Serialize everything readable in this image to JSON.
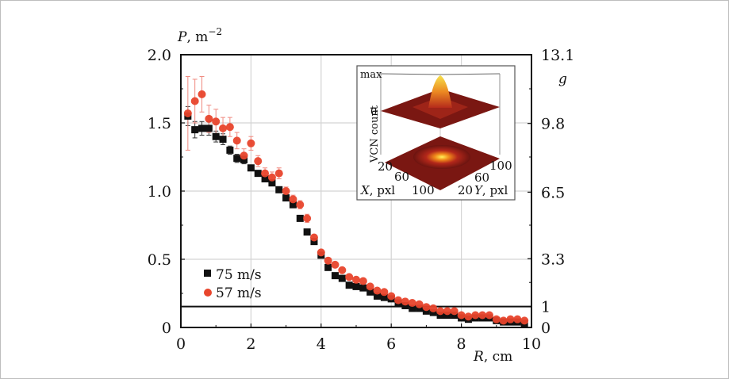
{
  "chart_data": {
    "type": "scatter",
    "title": "",
    "xlabel": "R, cm",
    "ylabel": "P, m^-2",
    "ylabel_right": "g",
    "xlim": [
      0,
      10
    ],
    "ylim": [
      0,
      2.0
    ],
    "xticks": [
      "0",
      "2",
      "4",
      "6",
      "8",
      "10"
    ],
    "yticks": [
      "0",
      "0.5",
      "1.0",
      "1.5",
      "2.0"
    ],
    "yticks_right": [
      "0",
      "1",
      "3.3",
      "6.5",
      "9.8",
      "13.1"
    ],
    "yticks_right_values": [
      0,
      0.153,
      0.504,
      0.992,
      1.496,
      2.0
    ],
    "grid": true,
    "reference_line": {
      "y": 0.153,
      "label": "g = 1"
    },
    "legend": {
      "position": "bottom-left",
      "entries": [
        "75 m/s",
        "57 m/s"
      ]
    },
    "series": [
      {
        "name": "75 m/s",
        "marker": "square",
        "color": "#111111",
        "x": [
          0.2,
          0.4,
          0.6,
          0.8,
          1.0,
          1.2,
          1.4,
          1.6,
          1.8,
          2.0,
          2.2,
          2.4,
          2.6,
          2.8,
          3.0,
          3.2,
          3.4,
          3.6,
          3.8,
          4.0,
          4.2,
          4.4,
          4.6,
          4.8,
          5.0,
          5.2,
          5.4,
          5.6,
          5.8,
          6.0,
          6.2,
          6.4,
          6.6,
          6.8,
          7.0,
          7.2,
          7.4,
          7.6,
          7.8,
          8.0,
          8.2,
          8.4,
          8.6,
          8.8,
          9.0,
          9.2,
          9.4,
          9.6,
          9.8
        ],
        "y": [
          1.55,
          1.45,
          1.46,
          1.46,
          1.4,
          1.38,
          1.3,
          1.24,
          1.23,
          1.17,
          1.13,
          1.09,
          1.06,
          1.01,
          0.95,
          0.9,
          0.8,
          0.7,
          0.63,
          0.53,
          0.44,
          0.38,
          0.36,
          0.31,
          0.3,
          0.29,
          0.26,
          0.23,
          0.22,
          0.21,
          0.18,
          0.16,
          0.14,
          0.14,
          0.12,
          0.11,
          0.09,
          0.09,
          0.09,
          0.07,
          0.06,
          0.07,
          0.07,
          0.07,
          0.05,
          0.04,
          0.04,
          0.04,
          0.03
        ],
        "err": [
          0.07,
          0.06,
          0.05,
          0.05,
          0.04,
          0.04,
          0.03,
          0.03,
          0.03,
          0.02,
          0.02,
          0.02,
          0.02,
          0.02,
          0.02,
          0.01,
          0.01,
          0.01,
          0.01,
          0.01,
          0.01,
          0.01,
          0.01,
          0.01,
          0.01,
          0.01,
          0.01,
          0.01,
          0.01,
          0.01,
          0.01,
          0.01,
          0.01,
          0.01,
          0.01,
          0.01,
          0.01,
          0.01,
          0.01,
          0.01,
          0.01,
          0.01,
          0.01,
          0.01,
          0.01,
          0.01,
          0.01,
          0.01,
          0.01
        ]
      },
      {
        "name": "57 m/s",
        "marker": "circle",
        "color": "#e8452c",
        "x": [
          0.2,
          0.4,
          0.6,
          0.8,
          1.0,
          1.2,
          1.4,
          1.6,
          1.8,
          2.0,
          2.2,
          2.4,
          2.6,
          2.8,
          3.0,
          3.2,
          3.4,
          3.6,
          3.8,
          4.0,
          4.2,
          4.4,
          4.6,
          4.8,
          5.0,
          5.2,
          5.4,
          5.6,
          5.8,
          6.0,
          6.2,
          6.4,
          6.6,
          6.8,
          7.0,
          7.2,
          7.4,
          7.6,
          7.8,
          8.0,
          8.2,
          8.4,
          8.6,
          8.8,
          9.0,
          9.2,
          9.4,
          9.6,
          9.8
        ],
        "y": [
          1.57,
          1.66,
          1.71,
          1.53,
          1.51,
          1.46,
          1.47,
          1.37,
          1.26,
          1.35,
          1.22,
          1.13,
          1.1,
          1.13,
          1.0,
          0.94,
          0.9,
          0.8,
          0.66,
          0.55,
          0.49,
          0.46,
          0.42,
          0.37,
          0.35,
          0.34,
          0.3,
          0.27,
          0.26,
          0.23,
          0.2,
          0.19,
          0.18,
          0.17,
          0.15,
          0.14,
          0.12,
          0.12,
          0.12,
          0.09,
          0.08,
          0.09,
          0.09,
          0.09,
          0.06,
          0.05,
          0.06,
          0.06,
          0.05
        ],
        "err": [
          0.27,
          0.16,
          0.13,
          0.1,
          0.09,
          0.08,
          0.07,
          0.06,
          0.05,
          0.05,
          0.04,
          0.04,
          0.04,
          0.04,
          0.03,
          0.03,
          0.03,
          0.03,
          0.02,
          0.02,
          0.02,
          0.01,
          0.01,
          0.01,
          0.01,
          0.01,
          0.01,
          0.01,
          0.01,
          0.01,
          0.01,
          0.01,
          0.01,
          0.01,
          0.01,
          0.01,
          0.01,
          0.01,
          0.01,
          0.01,
          0.01,
          0.01,
          0.01,
          0.01,
          0.01,
          0.01,
          0.01,
          0.01,
          0.01
        ]
      }
    ],
    "inset": {
      "type": "3d-surface",
      "zlabel": "VCN count",
      "zticks": [
        "0",
        "max"
      ],
      "xlabel": "X, pxl",
      "ylabel": "Y, pxl",
      "xticks": [
        "20",
        "60",
        "100"
      ],
      "yticks": [
        "20",
        "60",
        "100"
      ]
    }
  }
}
